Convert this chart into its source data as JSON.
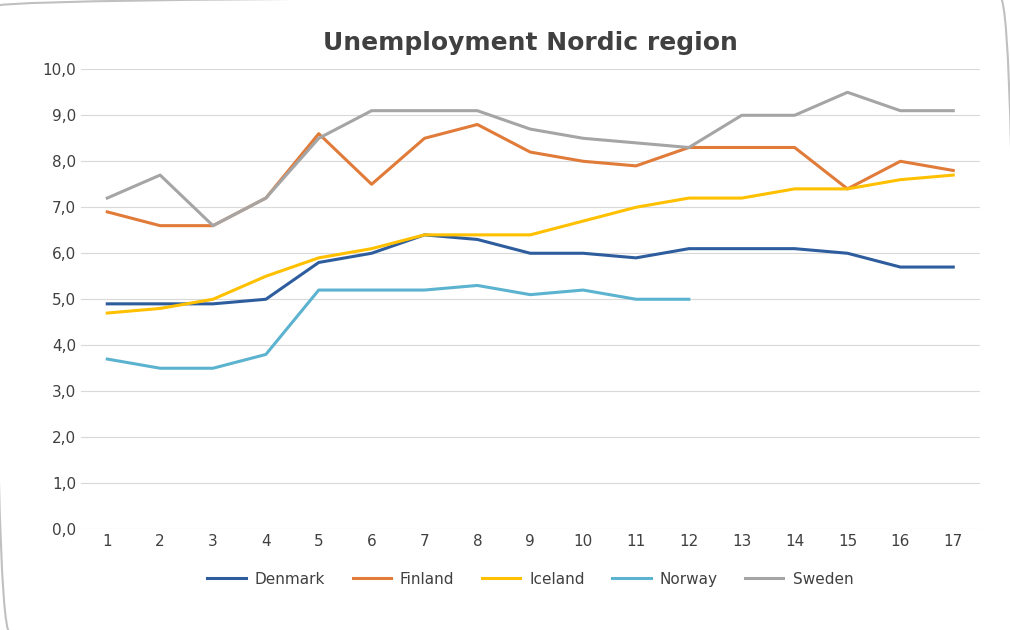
{
  "title": "Unemployment Nordic region",
  "x": [
    1,
    2,
    3,
    4,
    5,
    6,
    7,
    8,
    9,
    10,
    11,
    12,
    13,
    14,
    15,
    16,
    17
  ],
  "denmark": [
    4.9,
    4.9,
    4.9,
    5.0,
    5.8,
    6.0,
    6.4,
    6.3,
    6.0,
    6.0,
    5.9,
    6.1,
    6.1,
    6.1,
    6.0,
    5.7,
    5.7
  ],
  "finland": [
    6.9,
    6.6,
    6.6,
    7.2,
    8.6,
    7.5,
    8.5,
    8.8,
    8.2,
    8.0,
    7.9,
    8.3,
    8.3,
    8.3,
    7.4,
    8.0,
    7.8
  ],
  "iceland": [
    4.7,
    4.8,
    5.0,
    5.5,
    5.9,
    6.1,
    6.4,
    6.4,
    6.4,
    6.7,
    7.0,
    7.2,
    7.2,
    7.4,
    7.4,
    7.6,
    7.7
  ],
  "norway": [
    3.7,
    3.5,
    3.5,
    3.8,
    5.2,
    5.2,
    5.2,
    5.3,
    5.1,
    5.2,
    5.0,
    5.0,
    null,
    null,
    null,
    null,
    null
  ],
  "sweden": [
    7.2,
    7.7,
    6.6,
    7.2,
    8.5,
    9.1,
    9.1,
    9.1,
    8.7,
    8.5,
    8.4,
    8.3,
    9.0,
    9.0,
    9.5,
    9.1,
    9.1
  ],
  "colors": {
    "denmark": "#2e5d9e",
    "finland": "#e07b39",
    "iceland": "#ffc000",
    "norway": "#5bb3d0",
    "sweden": "#a5a5a5"
  },
  "ylim": [
    0,
    10.0
  ],
  "ytick_step": 1.0,
  "background_color": "#ffffff",
  "grid_color": "#d9d9d9",
  "title_fontsize": 18,
  "title_color": "#404040",
  "tick_label_fontsize": 11,
  "legend_fontsize": 11,
  "linewidth": 2.2
}
